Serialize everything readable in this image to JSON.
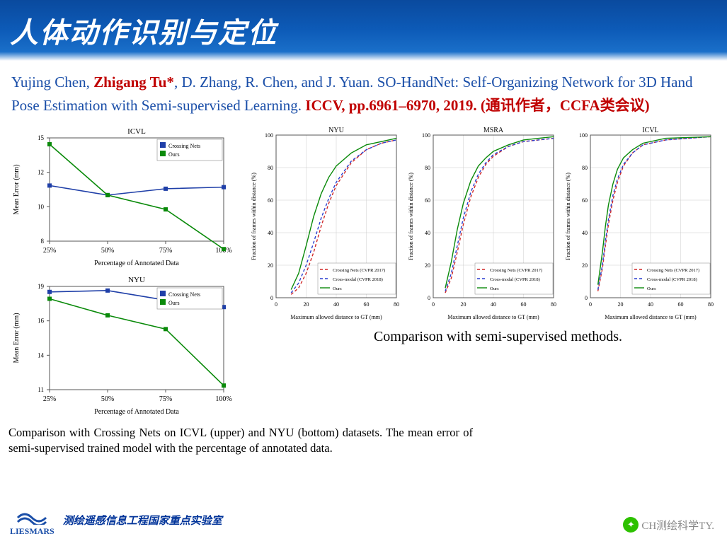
{
  "header": {
    "title": "人体动作识别与定位"
  },
  "citation": {
    "authors_pre": "Yujing Chen, ",
    "bold_author": "Zhigang Tu*",
    "authors_post": ", D. Zhang, R. Chen, and J. Yuan. ",
    "title": "SO-HandNet: Self-Organizing Network for 3D Hand Pose Estimation with Semi-supervised Learning. ",
    "venue": "ICCV, pp.6961–6970, 2019. (通讯作者，CCFA类会议)"
  },
  "left_charts": {
    "icvl": {
      "title": "ICVL",
      "ylabel": "Mean Error (mm)",
      "xlabel": "Percentage of Annotated Data",
      "xticks": [
        "25%",
        "50%",
        "75%",
        "100%"
      ],
      "yticks_min": 8,
      "yticks_max": 14.5,
      "legend": [
        "Crossing Nets",
        "Ours"
      ],
      "series": [
        {
          "name": "Crossing Nets",
          "color": "#1f3fa8",
          "points": [
            [
              25,
              11.5
            ],
            [
              50,
              10.9
            ],
            [
              75,
              11.3
            ],
            [
              100,
              11.4
            ]
          ]
        },
        {
          "name": "Ours",
          "color": "#0a8a0a",
          "points": [
            [
              25,
              14.1
            ],
            [
              50,
              10.9
            ],
            [
              75,
              10.0
            ],
            [
              100,
              7.5
            ]
          ]
        }
      ]
    },
    "nyu": {
      "title": "NYU",
      "ylabel": "Mean Error (mm)",
      "xlabel": "Percentage of Annotated Data",
      "xticks": [
        "25%",
        "50%",
        "75%",
        "100%"
      ],
      "yticks_min": 11,
      "yticks_max": 18.5,
      "legend": [
        "Crossing Nets",
        "Ours"
      ],
      "series": [
        {
          "name": "Crossing Nets",
          "color": "#1f3fa8",
          "points": [
            [
              25,
              18.1
            ],
            [
              50,
              18.2
            ],
            [
              75,
              17.5
            ],
            [
              100,
              17.0
            ]
          ]
        },
        {
          "name": "Ours",
          "color": "#0a8a0a",
          "points": [
            [
              25,
              17.6
            ],
            [
              50,
              16.4
            ],
            [
              75,
              15.4
            ],
            [
              100,
              11.3
            ]
          ]
        }
      ]
    }
  },
  "right_charts": {
    "common": {
      "ylabel": "Fraction of frames within distance (%)",
      "xlabel": "Maximum allowed distance to GT (mm)",
      "xlim": [
        0,
        80
      ],
      "ylim": [
        0,
        100
      ],
      "legend": [
        "Crossing Nets (CVPR 2017)",
        "Cross-modal (CVPR 2018)",
        "Ours"
      ],
      "colors": [
        "#d02828",
        "#2a3fd0",
        "#0a8a0a"
      ]
    },
    "nyu": {
      "title": "NYU",
      "series": [
        [
          [
            10,
            2
          ],
          [
            15,
            6
          ],
          [
            20,
            15
          ],
          [
            25,
            28
          ],
          [
            30,
            44
          ],
          [
            35,
            58
          ],
          [
            40,
            69
          ],
          [
            50,
            83
          ],
          [
            60,
            91
          ],
          [
            70,
            95
          ],
          [
            80,
            97
          ]
        ],
        [
          [
            10,
            3
          ],
          [
            15,
            9
          ],
          [
            20,
            20
          ],
          [
            25,
            34
          ],
          [
            30,
            49
          ],
          [
            35,
            61
          ],
          [
            40,
            71
          ],
          [
            50,
            84
          ],
          [
            60,
            91
          ],
          [
            70,
            95
          ],
          [
            80,
            97
          ]
        ],
        [
          [
            10,
            5
          ],
          [
            15,
            15
          ],
          [
            20,
            32
          ],
          [
            25,
            50
          ],
          [
            30,
            64
          ],
          [
            35,
            74
          ],
          [
            40,
            81
          ],
          [
            50,
            89
          ],
          [
            60,
            94
          ],
          [
            70,
            96
          ],
          [
            80,
            98
          ]
        ]
      ]
    },
    "msra": {
      "title": "MSRA",
      "series": [
        [
          [
            8,
            3
          ],
          [
            12,
            12
          ],
          [
            16,
            28
          ],
          [
            20,
            45
          ],
          [
            25,
            62
          ],
          [
            30,
            74
          ],
          [
            35,
            82
          ],
          [
            40,
            87
          ],
          [
            50,
            93
          ],
          [
            60,
            96
          ],
          [
            80,
            98
          ]
        ],
        [
          [
            8,
            4
          ],
          [
            12,
            15
          ],
          [
            16,
            32
          ],
          [
            20,
            49
          ],
          [
            25,
            65
          ],
          [
            30,
            76
          ],
          [
            35,
            83
          ],
          [
            40,
            88
          ],
          [
            50,
            93
          ],
          [
            60,
            96
          ],
          [
            80,
            98
          ]
        ],
        [
          [
            8,
            6
          ],
          [
            12,
            22
          ],
          [
            16,
            42
          ],
          [
            20,
            58
          ],
          [
            25,
            72
          ],
          [
            30,
            81
          ],
          [
            35,
            86
          ],
          [
            40,
            90
          ],
          [
            50,
            94
          ],
          [
            60,
            97
          ],
          [
            80,
            99
          ]
        ]
      ]
    },
    "icvl": {
      "title": "ICVL",
      "series": [
        [
          [
            5,
            4
          ],
          [
            8,
            18
          ],
          [
            10,
            32
          ],
          [
            12,
            45
          ],
          [
            15,
            60
          ],
          [
            18,
            71
          ],
          [
            22,
            81
          ],
          [
            28,
            89
          ],
          [
            35,
            94
          ],
          [
            50,
            97
          ],
          [
            80,
            99
          ]
        ],
        [
          [
            5,
            5
          ],
          [
            8,
            20
          ],
          [
            10,
            35
          ],
          [
            12,
            48
          ],
          [
            15,
            63
          ],
          [
            18,
            73
          ],
          [
            22,
            82
          ],
          [
            28,
            89
          ],
          [
            35,
            94
          ],
          [
            50,
            97
          ],
          [
            80,
            99
          ]
        ],
        [
          [
            5,
            8
          ],
          [
            8,
            28
          ],
          [
            10,
            44
          ],
          [
            12,
            57
          ],
          [
            15,
            70
          ],
          [
            18,
            79
          ],
          [
            22,
            86
          ],
          [
            28,
            91
          ],
          [
            35,
            95
          ],
          [
            50,
            98
          ],
          [
            80,
            99
          ]
        ]
      ]
    }
  },
  "captions": {
    "left": "Comparison with Crossing Nets on ICVL (upper) and NYU (bottom) datasets. The mean error of semi-supervised trained model with the percentage of annotated data.",
    "right": "Comparison with semi-supervised methods."
  },
  "footer": {
    "logo_text": "LIESMARS",
    "lab_name": "测绘遥感信息工程国家重点实验室",
    "wechat_text": "CH测绘科学TY."
  },
  "styling": {
    "header_gradient": [
      "#0a4a9e",
      "#1a6fc9"
    ],
    "citation_color": "#1a4ea8",
    "emphasis_color": "#c00000",
    "chart_border": "#666666",
    "grid_color": "#cccccc"
  }
}
